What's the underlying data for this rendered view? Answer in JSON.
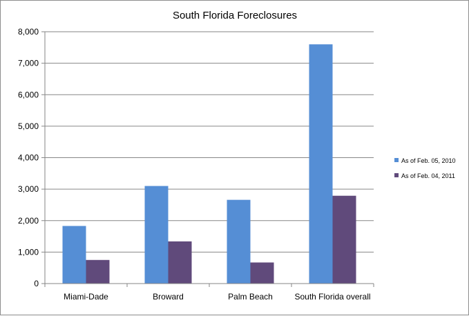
{
  "chart_data": {
    "type": "bar",
    "title": "South  Florida Foreclosures",
    "xlabel": "",
    "ylabel": "",
    "categories": [
      "Miami-Dade",
      "Broward",
      "Palm Beach",
      "South Florida overall"
    ],
    "series": [
      {
        "name": "As of Feb. 05, 2010",
        "color": "#558ed5",
        "values": [
          1830,
          3100,
          2660,
          7600
        ]
      },
      {
        "name": "As of Feb. 04, 2011",
        "color": "#604a7b",
        "values": [
          750,
          1340,
          670,
          2790
        ]
      }
    ],
    "ylim": [
      0,
      8000
    ],
    "yticks": [
      "0",
      "1,000",
      "2,000",
      "3,000",
      "4,000",
      "5,000",
      "6,000",
      "7,000",
      "8,000"
    ],
    "ytick_values": [
      0,
      1000,
      2000,
      3000,
      4000,
      5000,
      6000,
      7000,
      8000
    ],
    "grid": true,
    "legend": "right"
  }
}
